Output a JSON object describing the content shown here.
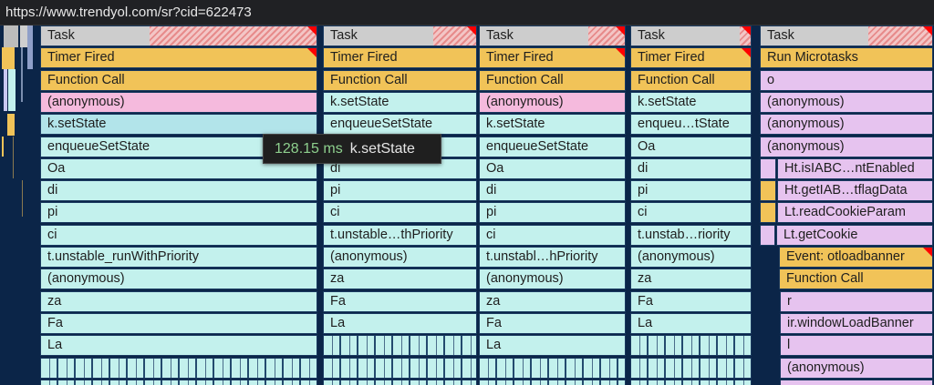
{
  "url": "https://www.trendyol.com/sr?cid=622473",
  "colors": {
    "task": "#cdcdcd",
    "yellow": "#f1c358",
    "pink": "#f5badd",
    "cyan": "#c3f1ed",
    "cyan_hover": "#b2e4ea",
    "purple": "#e6c3ef",
    "background": "#0b2548",
    "long_task_corner": "#ff0000"
  },
  "tooltip": {
    "duration": "128.15 ms",
    "name": "k.setState"
  },
  "columns": [
    {
      "rows": [
        {
          "label": "Task",
          "color": "task",
          "long_task": true
        },
        {
          "label": "Timer Fired",
          "color": "yellow",
          "long_task": true
        },
        {
          "label": "Function Call",
          "color": "yellow"
        },
        {
          "label": "(anonymous)",
          "color": "pink"
        },
        {
          "label": "k.setState",
          "color": "cyan_hover"
        },
        {
          "label": "enqueueSetState",
          "color": "cyan"
        },
        {
          "label": "Oa",
          "color": "cyan"
        },
        {
          "label": "di",
          "color": "cyan"
        },
        {
          "label": "pi",
          "color": "cyan"
        },
        {
          "label": "ci",
          "color": "cyan"
        },
        {
          "label": "t.unstable_runWithPriority",
          "color": "cyan"
        },
        {
          "label": "(anonymous)",
          "color": "cyan"
        },
        {
          "label": "za",
          "color": "cyan"
        },
        {
          "label": "Fa",
          "color": "cyan"
        },
        {
          "label": "La",
          "color": "cyan"
        },
        {
          "label": "",
          "color": "cyan",
          "dense": true
        },
        {
          "label": "",
          "color": "cyan",
          "dense": true
        }
      ]
    },
    {
      "rows": [
        {
          "label": "Task",
          "color": "task",
          "long_task": true
        },
        {
          "label": "Timer Fired",
          "color": "yellow"
        },
        {
          "label": "Function Call",
          "color": "yellow"
        },
        {
          "label": "k.setState",
          "color": "cyan"
        },
        {
          "label": "enqueueSetState",
          "color": "cyan"
        },
        {
          "label": "",
          "color": "cyan"
        },
        {
          "label": "di",
          "color": "cyan"
        },
        {
          "label": "pi",
          "color": "cyan"
        },
        {
          "label": "ci",
          "color": "cyan"
        },
        {
          "label": "t.unstable…thPriority",
          "color": "cyan"
        },
        {
          "label": "(anonymous)",
          "color": "cyan"
        },
        {
          "label": "za",
          "color": "cyan"
        },
        {
          "label": "Fa",
          "color": "cyan"
        },
        {
          "label": "La",
          "color": "cyan"
        },
        {
          "label": "",
          "color": "cyan",
          "dense": true
        },
        {
          "label": "",
          "color": "cyan",
          "dense": true
        },
        {
          "label": "",
          "color": "cyan",
          "dense": true
        }
      ]
    },
    {
      "rows": [
        {
          "label": "Task",
          "color": "task",
          "long_task": true
        },
        {
          "label": "Timer Fired",
          "color": "yellow",
          "long_task": true
        },
        {
          "label": "Function Call",
          "color": "yellow"
        },
        {
          "label": "(anonymous)",
          "color": "pink"
        },
        {
          "label": "k.setState",
          "color": "cyan"
        },
        {
          "label": "enqueueSetState",
          "color": "cyan"
        },
        {
          "label": "Oa",
          "color": "cyan"
        },
        {
          "label": "di",
          "color": "cyan"
        },
        {
          "label": "pi",
          "color": "cyan"
        },
        {
          "label": "ci",
          "color": "cyan"
        },
        {
          "label": "t.unstabl…hPriority",
          "color": "cyan"
        },
        {
          "label": "(anonymous)",
          "color": "cyan"
        },
        {
          "label": "za",
          "color": "cyan"
        },
        {
          "label": "Fa",
          "color": "cyan"
        },
        {
          "label": "La",
          "color": "cyan"
        },
        {
          "label": "",
          "color": "cyan",
          "dense": true
        },
        {
          "label": "",
          "color": "cyan",
          "dense": true
        }
      ]
    },
    {
      "rows": [
        {
          "label": "Task",
          "color": "task",
          "long_task": true
        },
        {
          "label": "Timer Fired",
          "color": "yellow",
          "long_task": true
        },
        {
          "label": "Function Call",
          "color": "yellow"
        },
        {
          "label": "k.setState",
          "color": "cyan"
        },
        {
          "label": "enqueu…tState",
          "color": "cyan"
        },
        {
          "label": "Oa",
          "color": "cyan"
        },
        {
          "label": "di",
          "color": "cyan"
        },
        {
          "label": "pi",
          "color": "cyan"
        },
        {
          "label": "ci",
          "color": "cyan"
        },
        {
          "label": "t.unstab…riority",
          "color": "cyan"
        },
        {
          "label": "(anonymous)",
          "color": "cyan"
        },
        {
          "label": "za",
          "color": "cyan"
        },
        {
          "label": "Fa",
          "color": "cyan"
        },
        {
          "label": "La",
          "color": "cyan"
        },
        {
          "label": "",
          "color": "cyan",
          "dense": true
        },
        {
          "label": "",
          "color": "cyan",
          "dense": true
        },
        {
          "label": "",
          "color": "cyan",
          "dense": true
        }
      ]
    },
    {
      "rows": [
        {
          "label": "Task",
          "color": "task",
          "long_task": true
        },
        {
          "label": "Run Microtasks",
          "color": "yellow"
        },
        {
          "label": "o",
          "color": "purple"
        },
        {
          "label": "(anonymous)",
          "color": "purple"
        },
        {
          "label": "(anonymous)",
          "color": "purple"
        },
        {
          "label": "(anonymous)",
          "color": "purple"
        },
        {
          "label": "Ht.isIABC…ntEnabled",
          "color": "purple"
        },
        {
          "label": "Ht.getIAB…tflagData",
          "color": "purple"
        },
        {
          "label": "Lt.readCookieParam",
          "color": "purple"
        },
        {
          "label": "Lt.getCookie",
          "color": "purple"
        },
        {
          "label": "Event: otloadbanner",
          "color": "yellow",
          "long_task": true
        },
        {
          "label": "Function Call",
          "color": "yellow"
        },
        {
          "label": "r",
          "color": "purple"
        },
        {
          "label": "ir.windowLoadBanner",
          "color": "purple"
        },
        {
          "label": "l",
          "color": "purple"
        },
        {
          "label": "(anonymous)",
          "color": "purple"
        },
        {
          "label": "",
          "color": "purple"
        }
      ]
    }
  ]
}
